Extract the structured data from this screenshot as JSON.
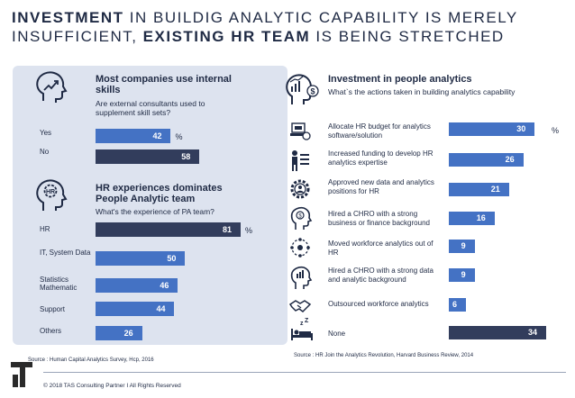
{
  "title": {
    "part1_bold": "INVESTMENT",
    "part2": " IN BUILDIG ANALYTIC CAPABILITY IS MERELY",
    "part3": "INSUFFICIENT, ",
    "part4_bold": "EXISTING HR TEAM",
    "part5": " IS BEING STRETCHED"
  },
  "left_panel": {
    "section1": {
      "title": "Most companies use internal skills",
      "subtitle": "Are external consultants used to supplement skill sets?"
    },
    "section2": {
      "title": "HR experiences dominates People Analytic team",
      "subtitle": "What's the experience of PA team?"
    },
    "source": "Source : Human Capital Analytics Survey, Hcp, 2016"
  },
  "right_panel": {
    "title": "Investment in people analytics",
    "subtitle": "What`s the actions taken in building analytics capability",
    "source": "Source : HR Join the Analytics Revolution,  Harvard Business Review, 2014"
  },
  "footer": {
    "copyright": "© 2018 TAS Consulting Partner  I  All Rights Reserved"
  },
  "colors": {
    "blue": "#4472c4",
    "navy": "#323d5c",
    "panel": "#dde3ef"
  },
  "chart_data": [
    {
      "type": "bar",
      "title": "Most companies use internal skills",
      "unit": "%",
      "categories": [
        "Yes",
        "No"
      ],
      "values": [
        42,
        58
      ],
      "highlight": [
        "No"
      ]
    },
    {
      "type": "bar",
      "title": "HR experiences dominates People Analytic team",
      "unit": "%",
      "categories": [
        "HR",
        "IT, System Data",
        "Statistics Mathematic",
        "Support",
        "Others"
      ],
      "values": [
        81,
        50,
        46,
        44,
        26
      ],
      "highlight": [
        "HR"
      ]
    },
    {
      "type": "bar",
      "title": "Investment in people analytics",
      "unit": "%",
      "categories": [
        "Allocate HR budget for analytics software/solution",
        "Increased funding to develop HR analytics expertise",
        "Approved new data and analytics positions for HR",
        "Hired a CHRO with a strong business or finance background",
        "Moved workforce analytics out of HR",
        "Hired a CHRO with a strong data and analytic background",
        "Outsourced workforce analytics",
        "None"
      ],
      "values": [
        30,
        26,
        21,
        16,
        9,
        9,
        6,
        34
      ],
      "highlight": [
        "None"
      ]
    }
  ]
}
